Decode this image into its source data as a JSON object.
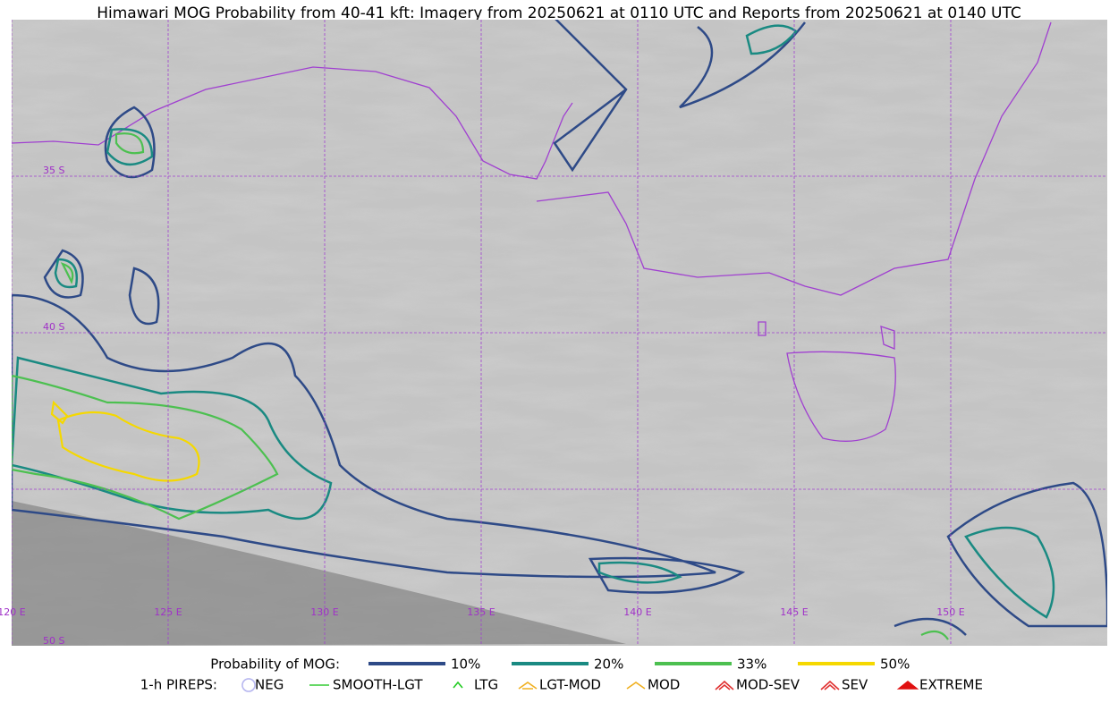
{
  "header": {
    "title": "Himawari MOG Probability from 40-41 kft: Imagery from 20250621 at 0110 UTC and Reports from 20250621 at 0140 UTC"
  },
  "map": {
    "lat_labels": [
      "35 S",
      "40 S",
      "50 S"
    ],
    "lon_labels": [
      "120 E",
      "125 E",
      "130 E",
      "135 E",
      "140 E",
      "145 E",
      "150 E"
    ]
  },
  "legend": {
    "mog_title": "Probability of MOG:",
    "mog_items": [
      {
        "label": "10%",
        "color": "#2e4a87"
      },
      {
        "label": "20%",
        "color": "#1a8a82"
      },
      {
        "label": "33%",
        "color": "#4cc050"
      },
      {
        "label": "50%",
        "color": "#f5d800"
      }
    ],
    "pirep_title": "1-h PIREPS:",
    "pirep_items": [
      {
        "label": "NEG",
        "color": "#b8b8f0"
      },
      {
        "label": "SMOOTH-LGT",
        "color": "#33cc33"
      },
      {
        "label": "LTG",
        "color": "#22cc22"
      },
      {
        "label": "LGT-MOD",
        "color": "#f0b020"
      },
      {
        "label": "MOD",
        "color": "#f0b020"
      },
      {
        "label": "MOD-SEV",
        "color": "#e03030"
      },
      {
        "label": "SEV",
        "color": "#e03030"
      },
      {
        "label": "EXTREME",
        "color": "#e01010"
      }
    ]
  }
}
